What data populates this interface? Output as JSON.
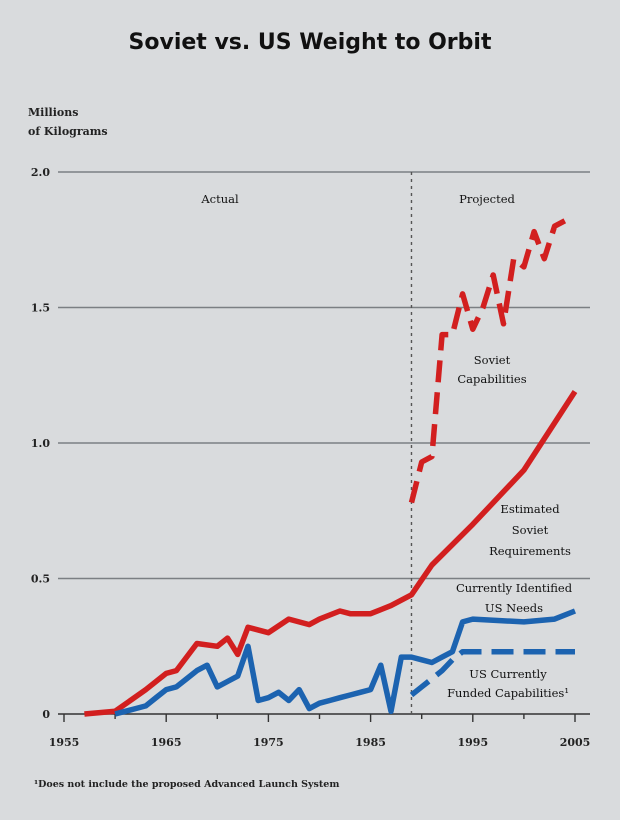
{
  "chart_data": {
    "type": "line",
    "title": "Soviet vs. US Weight to Orbit",
    "ylabel": [
      "Millions",
      "of Kilograms"
    ],
    "xlim": [
      1955,
      2005
    ],
    "ylim": [
      0,
      2.0
    ],
    "x_ticks": [
      "1955",
      "1965",
      "1975",
      "1985",
      "1995",
      "2005"
    ],
    "y_ticks": [
      "0",
      "0.5",
      "1.0",
      "1.5",
      "2.0"
    ],
    "y_tick_values": [
      0,
      0.5,
      1.0,
      1.5,
      2.0
    ],
    "x_tick_values": [
      1955,
      1965,
      1975,
      1985,
      1995,
      2005
    ],
    "grid": true,
    "divider_year": 1989,
    "regions": {
      "actual": "Actual",
      "projected": "Projected"
    },
    "colors": {
      "soviet": "#d21f1f",
      "us": "#1c63b0"
    },
    "series": [
      {
        "key": "soviet_capabilities",
        "color": "#d21f1f",
        "style": "dashed",
        "label": [
          "Soviet",
          "Capabilities"
        ],
        "x": [
          1989,
          1990,
          1991,
          1992,
          1993,
          1994,
          1995,
          1996,
          1997,
          1998,
          1999,
          2000,
          2001,
          2002,
          2003,
          2004
        ],
        "y": [
          0.78,
          0.93,
          0.95,
          1.4,
          1.4,
          1.55,
          1.42,
          1.5,
          1.62,
          1.44,
          1.68,
          1.65,
          1.78,
          1.68,
          1.8,
          1.82
        ]
      },
      {
        "key": "soviet_requirements",
        "color": "#d21f1f",
        "style": "solid",
        "label": [
          "Estimated",
          "Soviet",
          "Requirements"
        ],
        "x": [
          1957,
          1960,
          1963,
          1965,
          1966,
          1968,
          1970,
          1971,
          1972,
          1973,
          1975,
          1977,
          1979,
          1980,
          1982,
          1983,
          1985,
          1987,
          1989,
          1991,
          1995,
          2000,
          2005
        ],
        "y": [
          0.0,
          0.01,
          0.09,
          0.15,
          0.16,
          0.26,
          0.25,
          0.28,
          0.22,
          0.32,
          0.3,
          0.35,
          0.33,
          0.35,
          0.38,
          0.37,
          0.37,
          0.4,
          0.44,
          0.55,
          0.7,
          0.9,
          1.19
        ]
      },
      {
        "key": "us_needs",
        "color": "#1c63b0",
        "style": "solid",
        "label": [
          "Currently Identified",
          "US Needs"
        ],
        "x": [
          1960,
          1961,
          1962,
          1963,
          1964,
          1965,
          1966,
          1967,
          1968,
          1969,
          1970,
          1971,
          1972,
          1973,
          1974,
          1975,
          1976,
          1977,
          1978,
          1979,
          1980,
          1981,
          1982,
          1983,
          1984,
          1985,
          1986,
          1987,
          1988,
          1989,
          1990,
          1991,
          1992,
          1993,
          1994,
          1995,
          2000,
          2003,
          2005
        ],
        "y": [
          0.0,
          0.01,
          0.02,
          0.03,
          0.06,
          0.09,
          0.1,
          0.13,
          0.16,
          0.18,
          0.1,
          0.12,
          0.14,
          0.25,
          0.05,
          0.06,
          0.08,
          0.05,
          0.09,
          0.02,
          0.04,
          0.05,
          0.06,
          0.07,
          0.08,
          0.09,
          0.18,
          0.01,
          0.21,
          0.21,
          0.2,
          0.19,
          0.21,
          0.23,
          0.34,
          0.35,
          0.34,
          0.35,
          0.38
        ]
      },
      {
        "key": "us_funded",
        "color": "#1c63b0",
        "style": "dashed",
        "label": [
          "US Currently",
          "Funded Capabilities¹"
        ],
        "x": [
          1989,
          1990,
          1991,
          1992,
          1993,
          1994,
          1995,
          2000,
          2005
        ],
        "y": [
          0.07,
          0.1,
          0.13,
          0.16,
          0.2,
          0.23,
          0.23,
          0.23,
          0.23
        ]
      }
    ],
    "footnote": "¹Does not include the proposed Advanced Launch System"
  }
}
